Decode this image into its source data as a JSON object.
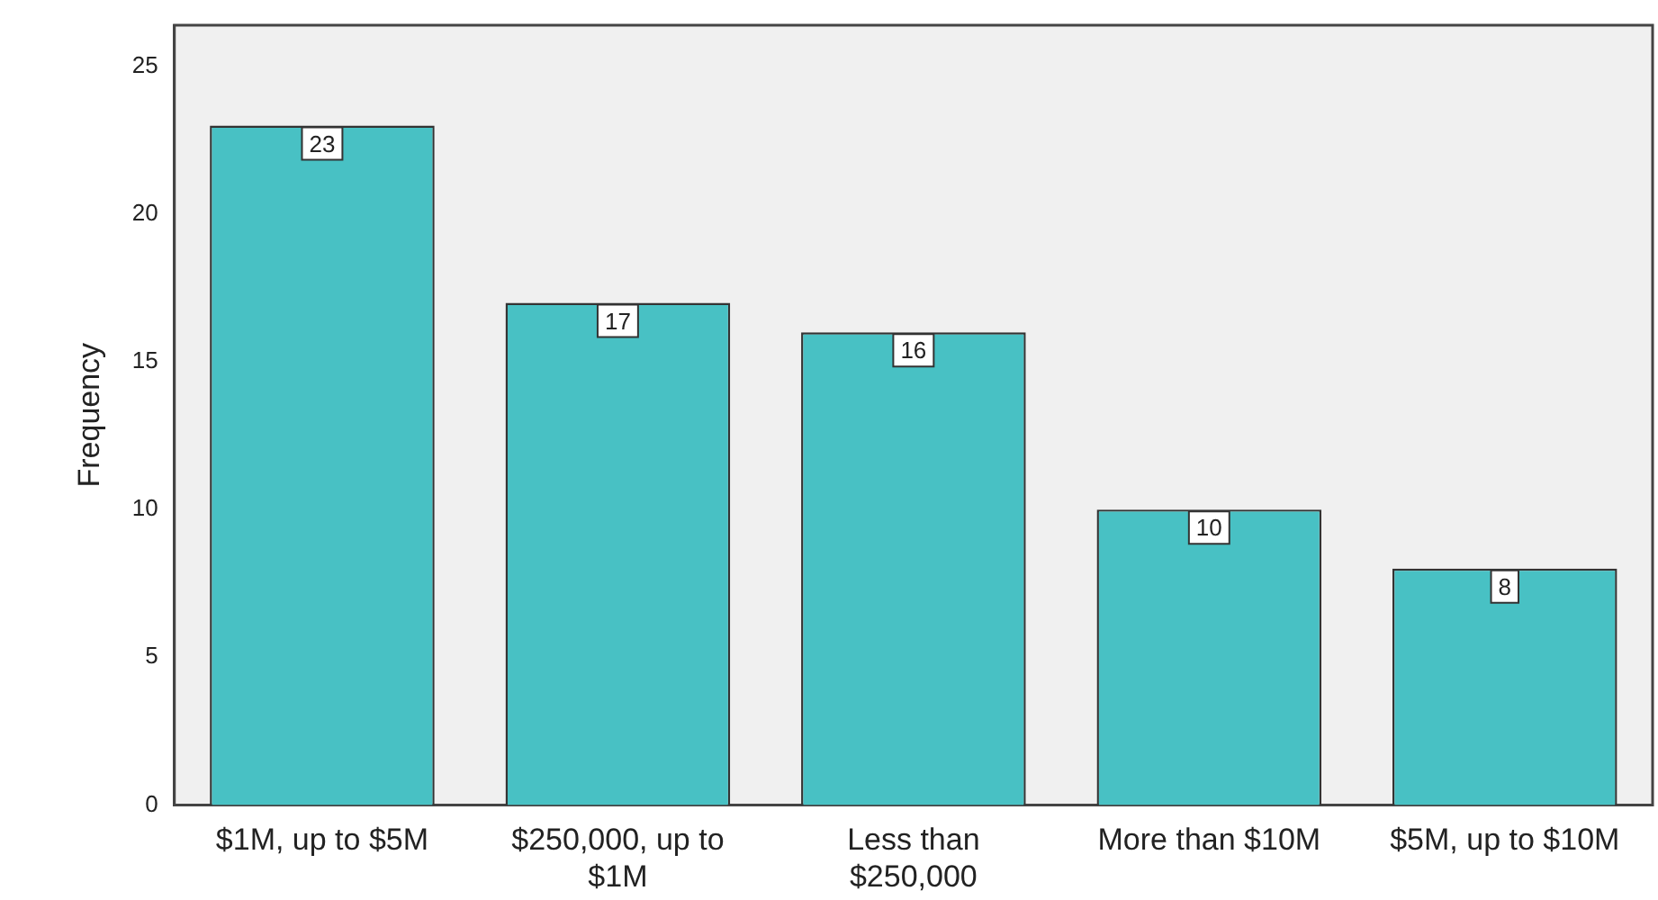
{
  "chart_data": {
    "type": "bar",
    "ylabel": "Frequency",
    "categories": [
      "$1M, up to $5M",
      "$250,000, up to $1M",
      "Less than $250,000",
      "More than $10M",
      "$5M, up to $10M"
    ],
    "values": [
      23,
      17,
      16,
      10,
      8
    ],
    "color": "#48c1c4",
    "ylim": [
      0,
      26.4
    ],
    "yticks": [
      0,
      5,
      10,
      15,
      20,
      25
    ],
    "data_labels": true
  }
}
